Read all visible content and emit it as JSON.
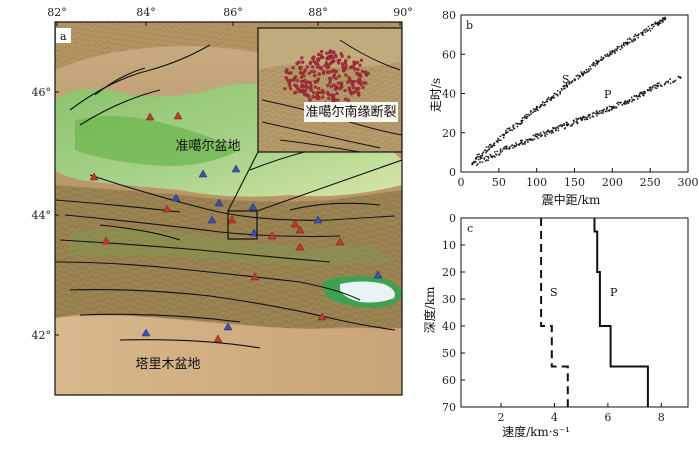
{
  "panel_a": {
    "label": "a",
    "lon_ticks": [
      "82°",
      "84°",
      "86°",
      "88°",
      "90°"
    ],
    "lat_ticks": [
      "46°",
      "44°",
      "42°"
    ],
    "labels": {
      "junggar_basin": "准噶尔盆地",
      "tarim_basin": "塔里木盆地",
      "fault_zone": "准噶尔南缘断裂"
    },
    "colors": {
      "red_triangle": "#c0392b",
      "blue_triangle": "#3a4fb0"
    }
  },
  "panel_b": {
    "label": "b",
    "phase_s": "S",
    "phase_p": "P",
    "chart_data": {
      "type": "scatter",
      "xlabel": "震中距/km",
      "ylabel": "走时/s",
      "x_ticks": [
        "0",
        "50",
        "100",
        "150",
        "200",
        "250",
        "300"
      ],
      "y_ticks": [
        "0",
        "20",
        "40",
        "60",
        "80"
      ],
      "xlim": [
        0,
        300
      ],
      "ylim": [
        0,
        80
      ],
      "series": [
        {
          "name": "S",
          "x": [
            20,
            40,
            60,
            80,
            100,
            120,
            140,
            160,
            180,
            200,
            220,
            240,
            260,
            270
          ],
          "y": [
            7,
            13,
            20,
            26,
            32,
            38,
            44,
            50,
            56,
            61,
            66,
            71,
            76,
            78
          ]
        },
        {
          "name": "P",
          "x": [
            15,
            40,
            60,
            80,
            100,
            120,
            140,
            160,
            180,
            200,
            220,
            240,
            260,
            290
          ],
          "y": [
            4,
            8,
            12,
            15,
            18,
            21,
            24,
            27,
            30,
            33,
            36,
            40,
            44,
            48
          ]
        }
      ]
    }
  },
  "panel_c": {
    "label": "c",
    "phase_s": "S",
    "phase_p": "P",
    "chart_data": {
      "type": "line",
      "xlabel": "速度/km·s⁻¹",
      "ylabel": "深度/km",
      "x_ticks": [
        "2",
        "4",
        "6",
        "8"
      ],
      "y_ticks": [
        "0",
        "10",
        "20",
        "30",
        "40",
        "50",
        "60",
        "70"
      ],
      "xlim": [
        0.5,
        9
      ],
      "ylim": [
        0,
        70
      ],
      "y_inverted": true,
      "series": [
        {
          "name": "P",
          "velocity": [
            5.5,
            5.5,
            5.6,
            5.6,
            5.7,
            5.7,
            6.1,
            6.1,
            7.5,
            7.5
          ],
          "depth": [
            0,
            5,
            5,
            20,
            20,
            40,
            40,
            55,
            55,
            70
          ]
        },
        {
          "name": "S",
          "velocity": [
            3.5,
            3.5,
            3.9,
            3.9,
            4.5,
            4.5
          ],
          "depth": [
            0,
            40,
            40,
            55,
            55,
            70
          ]
        }
      ]
    }
  }
}
